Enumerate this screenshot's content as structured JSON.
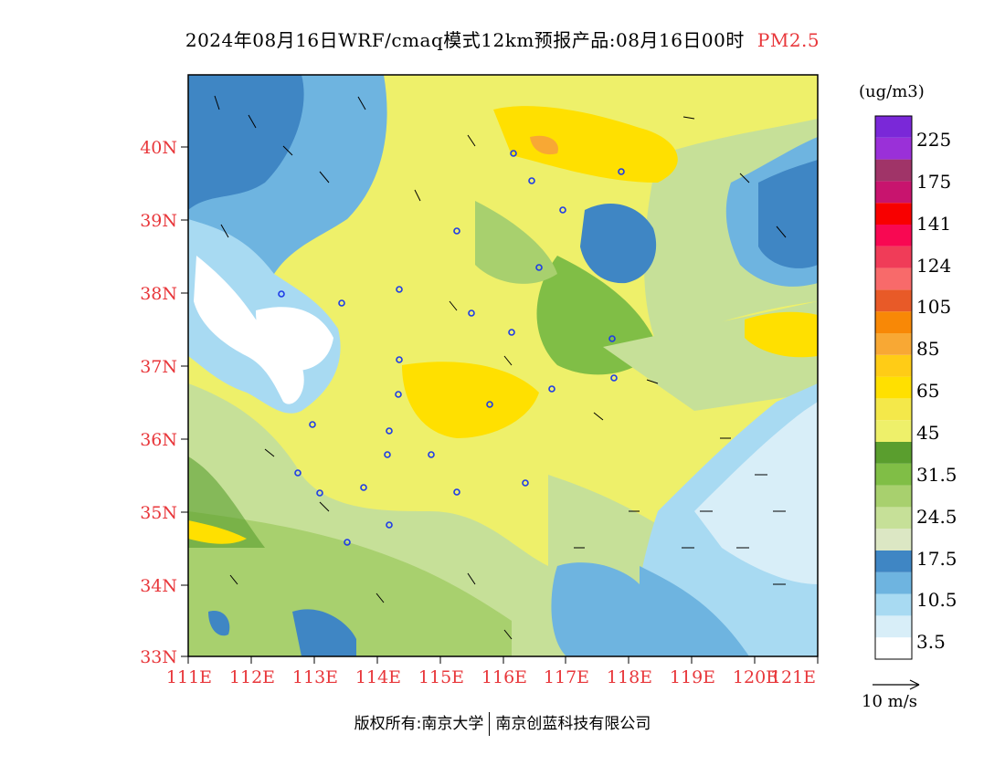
{
  "title": {
    "text": "2024年08月16日WRF/cmaq模式12km预报产品:08月16日00时",
    "pollutant": "PM2.5"
  },
  "map": {
    "lat_labels": [
      "40N",
      "39N",
      "38N",
      "37N",
      "36N",
      "35N",
      "34N",
      "33N"
    ],
    "lon_labels": [
      "111E",
      "112E",
      "113E",
      "114E",
      "115E",
      "116E",
      "117E",
      "118E",
      "119E",
      "120E",
      "121E"
    ]
  },
  "legend": {
    "unit": "(ug/m3)",
    "colors": [
      "#ffffff",
      "#d8eef8",
      "#a8daf2",
      "#6eb4e0",
      "#3f86c4",
      "#dce7c4",
      "#c6e098",
      "#a8d06e",
      "#80be46",
      "#5a9e2e",
      "#eef06a",
      "#f4e84a",
      "#ffe000",
      "#ffcc16",
      "#f8a834",
      "#f88806",
      "#e85a28",
      "#f86a6a",
      "#f03c58",
      "#f80852",
      "#f80000",
      "#c8146e",
      "#a03468",
      "#9a30d8",
      "#7a28d8"
    ],
    "labels": [
      "3.5",
      "10.5",
      "17.5",
      "24.5",
      "31.5",
      "45",
      "65",
      "85",
      "105",
      "124",
      "141",
      "175",
      "225"
    ]
  },
  "wind_reference": {
    "label": "10 m/s"
  },
  "footer": {
    "left": "版权所有:南京大学",
    "right": "南京创蓝科技有限公司"
  }
}
